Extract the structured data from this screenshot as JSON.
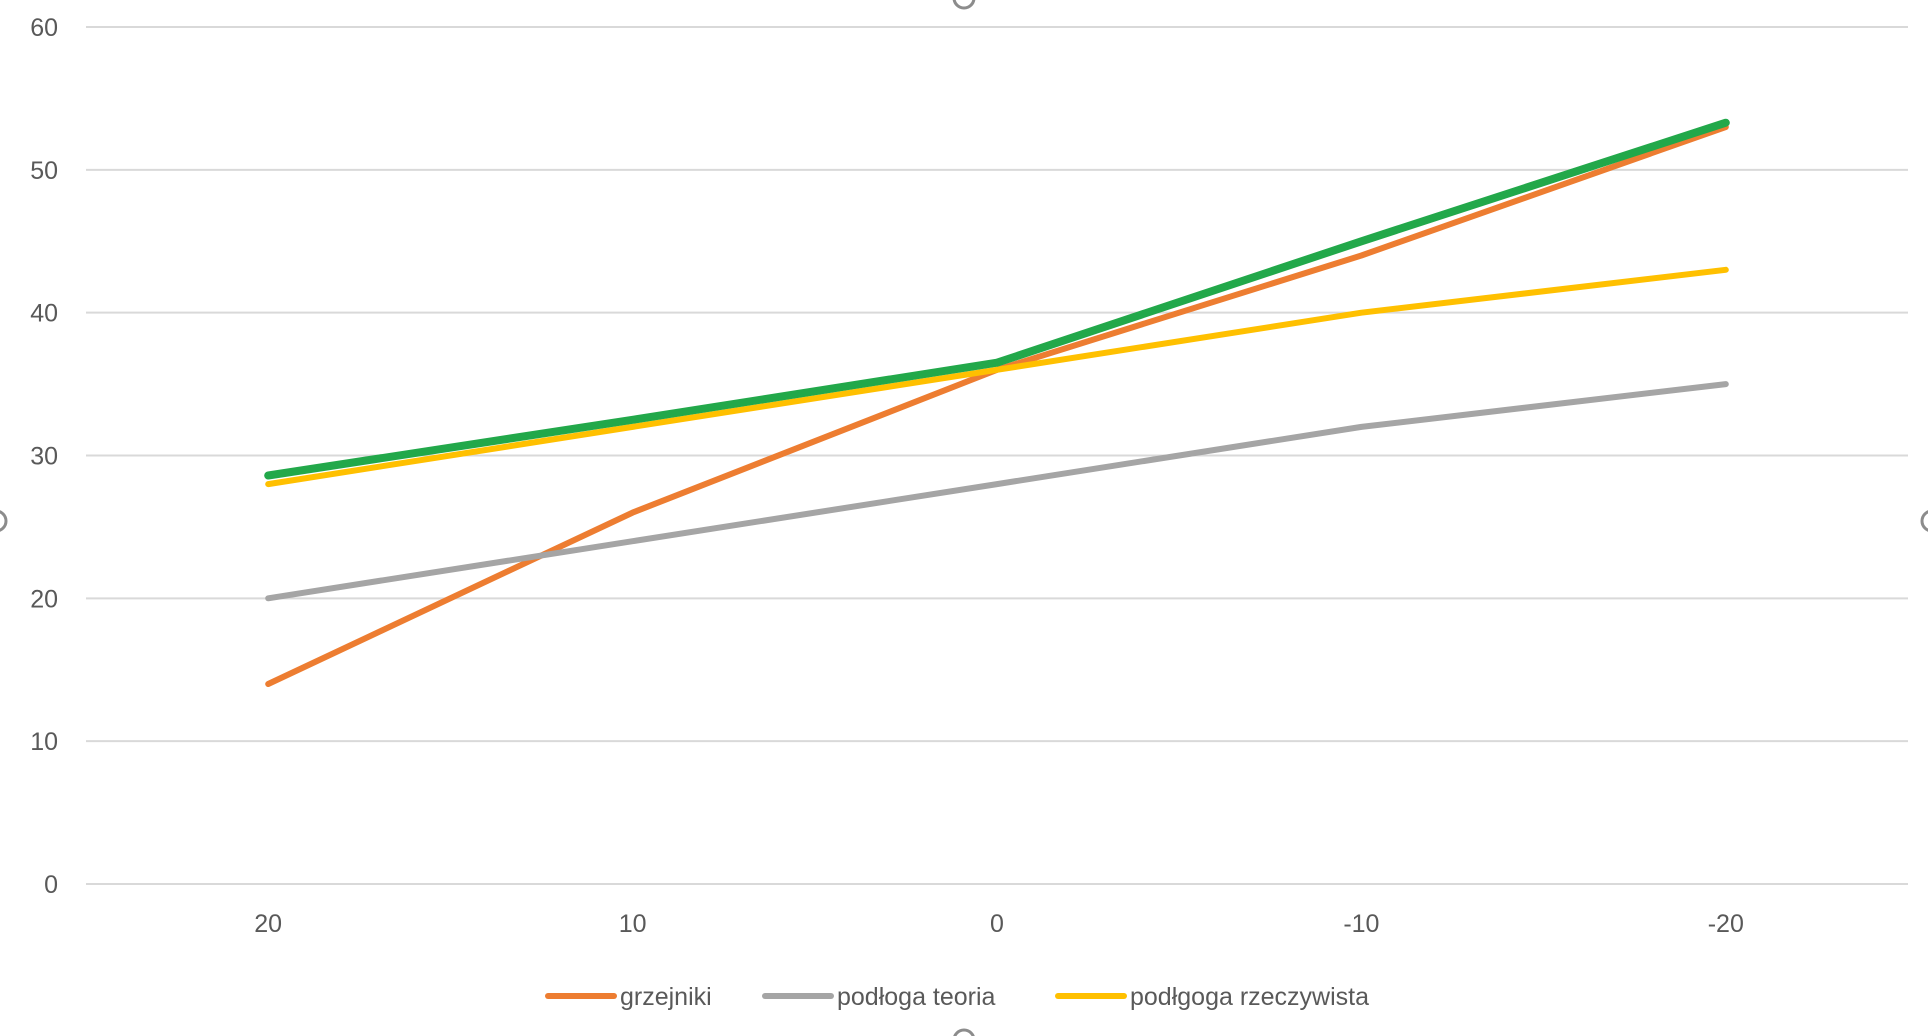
{
  "chart_data": {
    "type": "line",
    "title": "",
    "xlabel": "",
    "ylabel": "",
    "categories": [
      "20",
      "10",
      "0",
      "-10",
      "-20"
    ],
    "ylim": [
      0,
      60
    ],
    "yticks": [
      0,
      10,
      20,
      30,
      40,
      50,
      60
    ],
    "grid": true,
    "legend_position": "bottom",
    "series": [
      {
        "name": "grzejniki",
        "color": "#ED7D31",
        "values": [
          14,
          26,
          36,
          44,
          53
        ],
        "in_legend": true
      },
      {
        "name": "podłoga teoria",
        "color": "#A5A5A5",
        "values": [
          20,
          24,
          28,
          32,
          35
        ],
        "in_legend": true
      },
      {
        "name": "podłgoga rzeczywista",
        "color": "#FFC000",
        "values": [
          28,
          32,
          36,
          40,
          43
        ],
        "in_legend": true
      },
      {
        "name": "",
        "color": "#22A84A",
        "values": [
          28.6,
          32.5,
          36.5,
          45,
          53.3
        ],
        "in_legend": false
      }
    ]
  }
}
